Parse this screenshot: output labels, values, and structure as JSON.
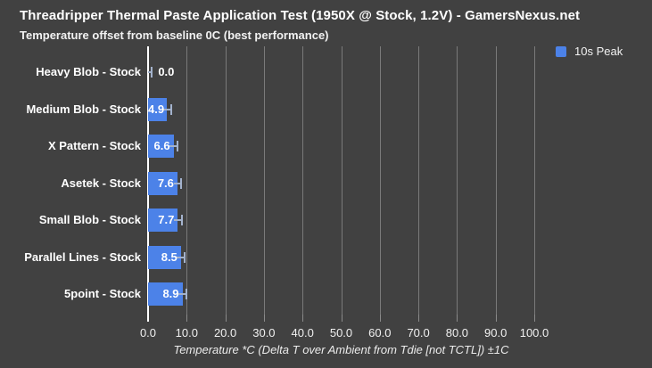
{
  "header": {
    "title": "Threadripper Thermal Paste Application Test (1950X @ Stock, 1.2V) - GamersNexus.net",
    "subtitle": "Temperature offset from baseline 0C (best performance)"
  },
  "legend": {
    "label": "10s Peak"
  },
  "colors": {
    "background": "#414141",
    "bar": "#4c82e8",
    "gridline": "#7a7a7a",
    "zero_axis": "#ffffff",
    "error_bar": "#a3b2cc",
    "text": "#ffffff"
  },
  "chart_data": {
    "type": "bar",
    "orientation": "horizontal",
    "title": "Threadripper Thermal Paste Application Test (1950X @ Stock, 1.2V) - GamersNexus.net",
    "subtitle": "Temperature offset from baseline 0C (best performance)",
    "categories": [
      "Heavy Blob - Stock",
      "Medium Blob  - Stock",
      "X Pattern - Stock",
      "Asetek - Stock",
      "Small Blob - Stock",
      "Parallel Lines - Stock",
      "5point - Stock"
    ],
    "series": [
      {
        "name": "10s Peak",
        "values": [
          0.0,
          4.9,
          6.6,
          7.6,
          7.7,
          8.5,
          8.9
        ]
      }
    ],
    "value_labels": [
      "0.0",
      "4.9",
      "6.6",
      "7.6",
      "7.7",
      "8.5",
      "8.9"
    ],
    "error_margin_c": 1.0,
    "xlabel": "Temperature *C (Delta T over Ambient from Tdie [not TCTL]) ±1C",
    "xlim": [
      0,
      100
    ],
    "xtick_labels": [
      "0.0",
      "10.0",
      "20.0",
      "30.0",
      "40.0",
      "50.0",
      "60.0",
      "70.0",
      "80.0",
      "90.0",
      "100.0"
    ],
    "grid": true,
    "legend_position": "top-right"
  }
}
